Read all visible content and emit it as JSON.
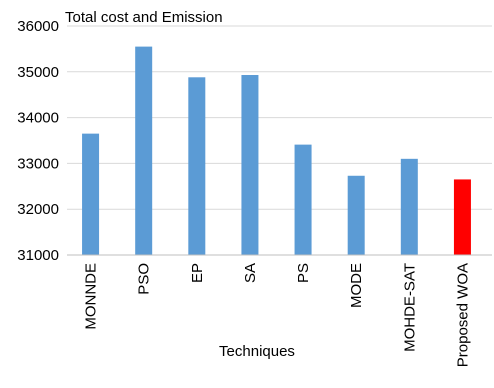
{
  "chart_data": {
    "type": "bar",
    "title": "Total cost and Emission",
    "xlabel": "Techniques",
    "ylabel": "",
    "ylim": [
      31000,
      36000
    ],
    "yticks": [
      31000,
      32000,
      33000,
      34000,
      35000,
      36000
    ],
    "ytick_labels": [
      "31000",
      "32000",
      "33000",
      "34000",
      "35000",
      "36000"
    ],
    "grid": true,
    "legend": "none",
    "categories": [
      "MONNDE",
      "PSO",
      "EP",
      "SA",
      "PS",
      "MODE",
      "MOHDE-SAT",
      "Proposed WOA"
    ],
    "values": [
      33650,
      35550,
      34880,
      34930,
      33410,
      32730,
      33100,
      32650
    ],
    "colors": {
      "default": "#5b9bd5",
      "highlight": "#ff0000",
      "highlight_index": 7
    }
  }
}
